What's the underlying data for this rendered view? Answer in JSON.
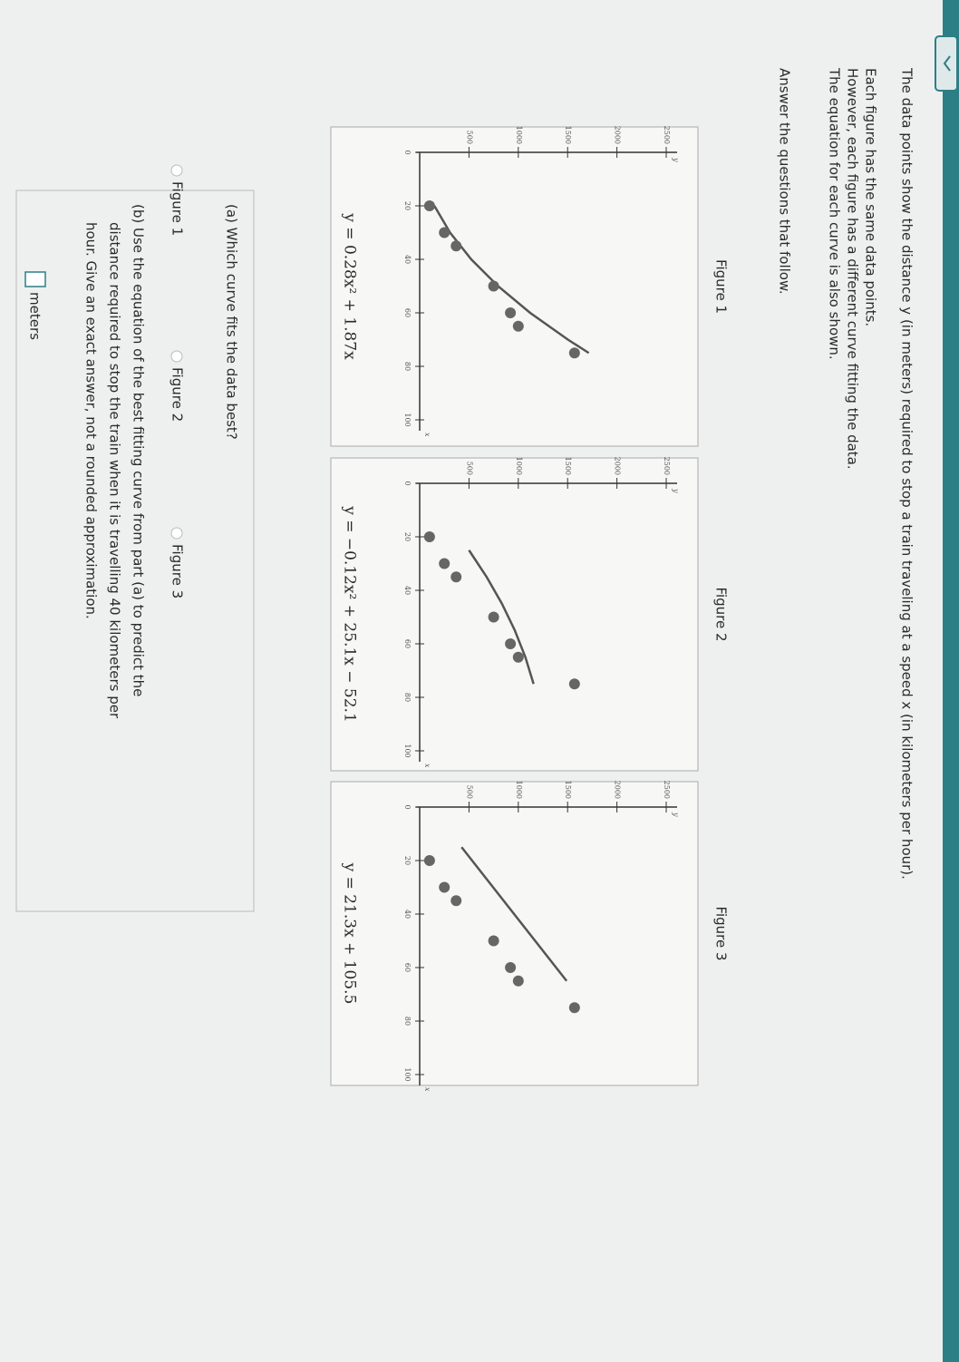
{
  "intro": [
    "The data points show the distance y (in meters) required to stop a train traveling at a speed x (in kilometers per hour).",
    "Each figure has the same data points.",
    "However, each figure has a different curve fitting the data.",
    "The equation for each curve is also shown."
  ],
  "instruction": "Answer the questions that follow.",
  "figures": [
    {
      "label": "Figure 1",
      "equation": "y = 0.28x² + 1.87x",
      "x_axis_label": "x",
      "y_axis_label": "y",
      "xlim": [
        0,
        100
      ],
      "ylim": [
        0,
        2500
      ],
      "xticks": [
        0,
        20,
        40,
        60,
        80,
        100
      ],
      "yticks": [
        500,
        1000,
        1500,
        2000,
        2500
      ],
      "x": [
        20,
        30,
        35,
        50,
        60,
        65,
        75
      ],
      "y": [
        100,
        250,
        370,
        750,
        920,
        1000,
        1570
      ],
      "curve": {
        "x": [
          20,
          30,
          40,
          50,
          60,
          70,
          75
        ],
        "y": [
          149,
          308,
          523,
          794,
          1120,
          1503,
          1715
        ]
      }
    },
    {
      "label": "Figure 2",
      "equation": "y = −0.12x² + 25.1x − 52.1",
      "x_axis_label": "x",
      "y_axis_label": "y",
      "xlim": [
        0,
        100
      ],
      "ylim": [
        0,
        2500
      ],
      "xticks": [
        0,
        20,
        40,
        60,
        80,
        100
      ],
      "yticks": [
        500,
        1000,
        1500,
        2000,
        2500
      ],
      "x": [
        20,
        30,
        35,
        50,
        60,
        65,
        75
      ],
      "y": [
        100,
        250,
        370,
        750,
        920,
        1000,
        1570
      ],
      "curve": {
        "x": [
          25,
          35,
          45,
          55,
          65,
          75
        ],
        "y": [
          500,
          679,
          834,
          965,
          1072,
          1155
        ]
      }
    },
    {
      "label": "Figure 3",
      "equation": "y = 21.3x + 105.5",
      "x_axis_label": "x",
      "y_axis_label": "y",
      "xlim": [
        0,
        100
      ],
      "ylim": [
        0,
        2500
      ],
      "xticks": [
        0,
        20,
        40,
        60,
        80,
        100
      ],
      "yticks": [
        500,
        1000,
        1500,
        2000,
        2500
      ],
      "x": [
        20,
        30,
        35,
        50,
        60,
        65,
        75
      ],
      "y": [
        100,
        250,
        370,
        750,
        920,
        1000,
        1570
      ],
      "curve": {
        "x": [
          15,
          65
        ],
        "y": [
          425,
          1490
        ]
      }
    }
  ],
  "part_a": {
    "question": "(a) Which curve fits the data best?",
    "options": [
      "Figure 1",
      "Figure 2",
      "Figure 3"
    ]
  },
  "part_b": {
    "lines": [
      "(b) Use the equation of the best fitting curve from part (a) to predict the",
      "distance required to stop the train when it is travelling 40 kilometers per",
      "hour. Give an exact answer, not a rounded approximation."
    ],
    "unit": "meters"
  }
}
